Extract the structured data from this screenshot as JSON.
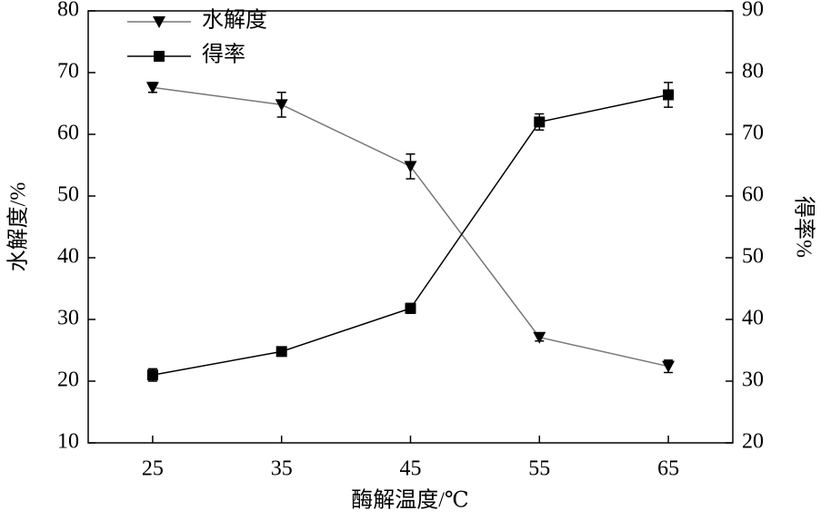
{
  "chart_data": {
    "type": "line",
    "x_label": "酶解温度/℃",
    "y_label": "水解度/%",
    "y2_label": "得率%",
    "x": [
      25,
      35,
      45,
      55,
      65
    ],
    "xlim": [
      20,
      70
    ],
    "xticks": [
      25,
      35,
      45,
      55,
      65
    ],
    "ylim": [
      10,
      80
    ],
    "yticks": [
      10,
      20,
      30,
      40,
      50,
      60,
      70,
      80
    ],
    "y2lim": [
      20,
      90
    ],
    "y2ticks": [
      20,
      30,
      40,
      50,
      60,
      70,
      80,
      90
    ],
    "legend": "upper-left",
    "series": [
      {
        "name": "水解度",
        "color": "#000000",
        "line_color": "#777777",
        "marker": "triangle-down",
        "values": [
          67.6,
          64.8,
          54.8,
          27.1,
          22.4
        ],
        "errors": [
          0.8,
          2.0,
          2.0,
          0.6,
          1.0
        ]
      },
      {
        "name": "得率",
        "color": "#000000",
        "line_color": "#000000",
        "marker": "square",
        "axis": "y2",
        "values": [
          31.0,
          34.8,
          41.8,
          72.0,
          76.4
        ],
        "errors": [
          1.0,
          0.5,
          0.8,
          1.3,
          2.0
        ]
      }
    ]
  }
}
